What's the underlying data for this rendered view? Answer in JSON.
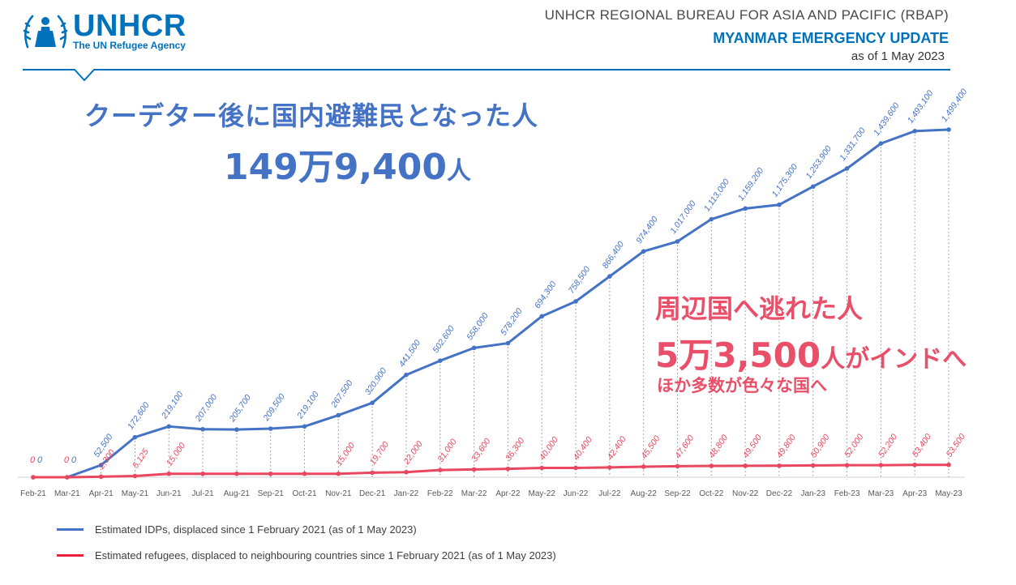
{
  "logo": {
    "name": "UNHCR",
    "subtitle": "The UN Refugee Agency"
  },
  "header": {
    "bureau": "UNHCR REGIONAL BUREAU FOR ASIA AND PACIFIC (RBAP)",
    "title": "MYANMAR EMERGENCY UPDATE",
    "as_of": "as of 1 May 2023"
  },
  "headline_idp": {
    "title": "クーデター後に国内避難民となった人",
    "number": "149万9,400",
    "unit": "人"
  },
  "headline_refugees": {
    "title": "周辺国へ逃れた人",
    "number": "5万3,500",
    "unit": "人がインドへ",
    "sub": "ほか多数が色々な国へ"
  },
  "colors": {
    "idp": "#4472c4",
    "refugees": "#e8475f",
    "brand": "#0072bc"
  },
  "chart_data": {
    "type": "line",
    "categories": [
      "Feb-21",
      "Mar-21",
      "Apr-21",
      "May-21",
      "Jun-21",
      "Jul-21",
      "Aug-21",
      "Sep-21",
      "Oct-21",
      "Nov-21",
      "Dec-21",
      "Jan-22",
      "Feb-22",
      "Mar-22",
      "Apr-22",
      "May-22",
      "Jun-22",
      "Jul-22",
      "Aug-22",
      "Sep-22",
      "Oct-22",
      "Nov-22",
      "Dec-22",
      "Jan-23",
      "Feb-23",
      "Mar-23",
      "Apr-23",
      "May-23"
    ],
    "series": [
      {
        "name": "Estimated IDPs, displaced since 1 February 2021 (as of 1 May 2023)",
        "values": [
          0,
          0,
          52500,
          172600,
          219100,
          207000,
          205700,
          209500,
          219100,
          267500,
          320900,
          441500,
          502600,
          558000,
          578200,
          694300,
          758500,
          866400,
          974400,
          1017000,
          1113000,
          1159200,
          1175300,
          1253900,
          1331700,
          1439600,
          1493100,
          1499400
        ],
        "labels": [
          "0",
          "0",
          "52,500",
          "172,600",
          "219,100",
          "207,000",
          "205,700",
          "209,500",
          "219,100",
          "267,500",
          "320,900",
          "441,500",
          "502,600",
          "558,000",
          "578,200",
          "694,300",
          "758,500",
          "866,400",
          "974,400",
          "1,017,000",
          "1,113,000",
          "1,159,200",
          "1,175,300",
          "1,253,900",
          "1,331,700",
          "1,439,600",
          "1,493,100",
          "1,499,400"
        ]
      },
      {
        "name": "Estimated refugees, displaced to neighbouring countries since 1 February 2021 (as of 1 May 2023)",
        "values": [
          0,
          0,
          2300,
          5125,
          15000,
          15000,
          15000,
          15000,
          15000,
          15000,
          19700,
          22000,
          31000,
          33600,
          36300,
          40000,
          40400,
          42400,
          45500,
          47600,
          48800,
          49500,
          49800,
          50900,
          52000,
          52200,
          53400,
          53500
        ],
        "labels": [
          "0",
          "0",
          "2,300",
          "5,125",
          "15,000",
          "",
          "",
          "",
          "",
          "15,000",
          "19,700",
          "22,000",
          "31,000",
          "33,600",
          "36,300",
          "40,000",
          "40,400",
          "42,400",
          "45,500",
          "47,600",
          "48,800",
          "49,500",
          "49,800",
          "50,900",
          "52,000",
          "52,200",
          "53,400",
          "53,500"
        ]
      }
    ]
  }
}
